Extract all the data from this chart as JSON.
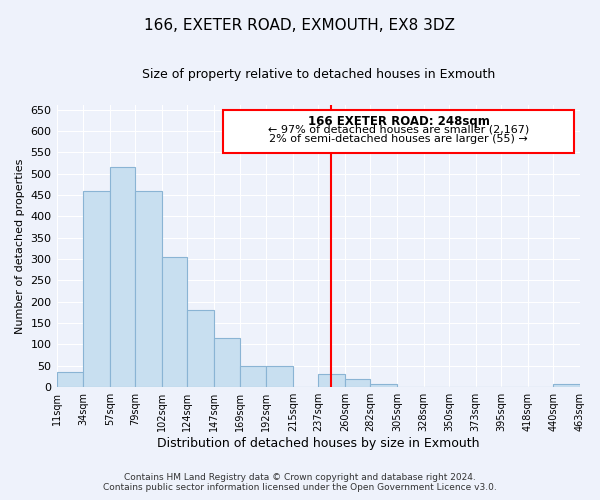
{
  "title": "166, EXETER ROAD, EXMOUTH, EX8 3DZ",
  "subtitle": "Size of property relative to detached houses in Exmouth",
  "xlabel": "Distribution of detached houses by size in Exmouth",
  "ylabel": "Number of detached properties",
  "bin_labels": [
    "11sqm",
    "34sqm",
    "57sqm",
    "79sqm",
    "102sqm",
    "124sqm",
    "147sqm",
    "169sqm",
    "192sqm",
    "215sqm",
    "237sqm",
    "260sqm",
    "282sqm",
    "305sqm",
    "328sqm",
    "350sqm",
    "373sqm",
    "395sqm",
    "418sqm",
    "440sqm",
    "463sqm"
  ],
  "bin_edges": [
    11,
    34,
    57,
    79,
    102,
    124,
    147,
    169,
    192,
    215,
    237,
    260,
    282,
    305,
    328,
    350,
    373,
    395,
    418,
    440,
    463
  ],
  "bar_heights": [
    35,
    460,
    515,
    460,
    305,
    180,
    115,
    50,
    50,
    0,
    30,
    20,
    8,
    0,
    0,
    0,
    0,
    0,
    0,
    8
  ],
  "bar_color": "#c8dff0",
  "bar_edgecolor": "#8ab4d4",
  "background_color": "#eef2fb",
  "grid_color": "#ffffff",
  "red_line_x": 248,
  "ylim": [
    0,
    660
  ],
  "yticks": [
    0,
    50,
    100,
    150,
    200,
    250,
    300,
    350,
    400,
    450,
    500,
    550,
    600,
    650
  ],
  "annotation_title": "166 EXETER ROAD: 248sqm",
  "annotation_line1": "← 97% of detached houses are smaller (2,167)",
  "annotation_line2": "2% of semi-detached houses are larger (55) →",
  "footer_line1": "Contains HM Land Registry data © Crown copyright and database right 2024.",
  "footer_line2": "Contains public sector information licensed under the Open Government Licence v3.0."
}
